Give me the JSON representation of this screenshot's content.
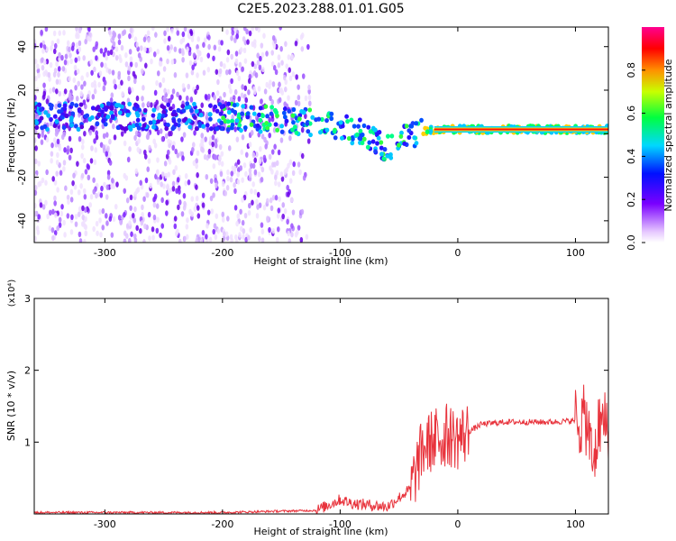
{
  "title": "C2E5.2023.288.01.01.G05",
  "chart_data": [
    {
      "type": "heatmap",
      "xlabel": "Height of straight line (km)",
      "ylabel": "Frequency (Hz)",
      "xlim": [
        -360,
        128
      ],
      "ylim": [
        -50,
        49
      ],
      "x_ticks": [
        -300,
        -200,
        -100,
        0,
        100
      ],
      "y_ticks": [
        -40,
        -20,
        0,
        20,
        40
      ],
      "ridge": {
        "x": [
          -360,
          -200,
          -140,
          -110,
          -80,
          -60,
          -40,
          -20,
          0,
          60,
          100,
          128
        ],
        "freq": [
          8,
          8,
          6,
          4,
          0,
          -7,
          0,
          2,
          2,
          2,
          2,
          2
        ]
      },
      "colorbar": {
        "label": "Normalized spectral amplitude",
        "range": [
          0,
          1
        ],
        "ticks": [
          "0.0",
          "0.2",
          "0.4",
          "0.6",
          "0.8"
        ]
      }
    },
    {
      "type": "line",
      "xlabel": "Height of straight line (km)",
      "ylabel": "SNR (10 * v/v)",
      "multiplier": "(x10⁴)",
      "xlim": [
        -360,
        128
      ],
      "ylim": [
        0,
        3
      ],
      "x_ticks": [
        -300,
        -200,
        -100,
        0,
        100
      ],
      "y_ticks": [
        1,
        2,
        3
      ],
      "color": "#e8333c",
      "series": [
        {
          "x": [
            -360,
            -200,
            -120,
            -100,
            -90,
            -60,
            -40,
            -30,
            -20,
            -10,
            0,
            10,
            20,
            40,
            60,
            80,
            100,
            110,
            115,
            120,
            128
          ],
          "y": [
            0.02,
            0.02,
            0.05,
            0.2,
            0.15,
            0.1,
            0.35,
            0.9,
            1.05,
            1.1,
            1.05,
            1.15,
            1.25,
            1.28,
            1.28,
            1.28,
            1.3,
            1.3,
            0.6,
            1.25,
            1.25
          ]
        }
      ]
    }
  ]
}
